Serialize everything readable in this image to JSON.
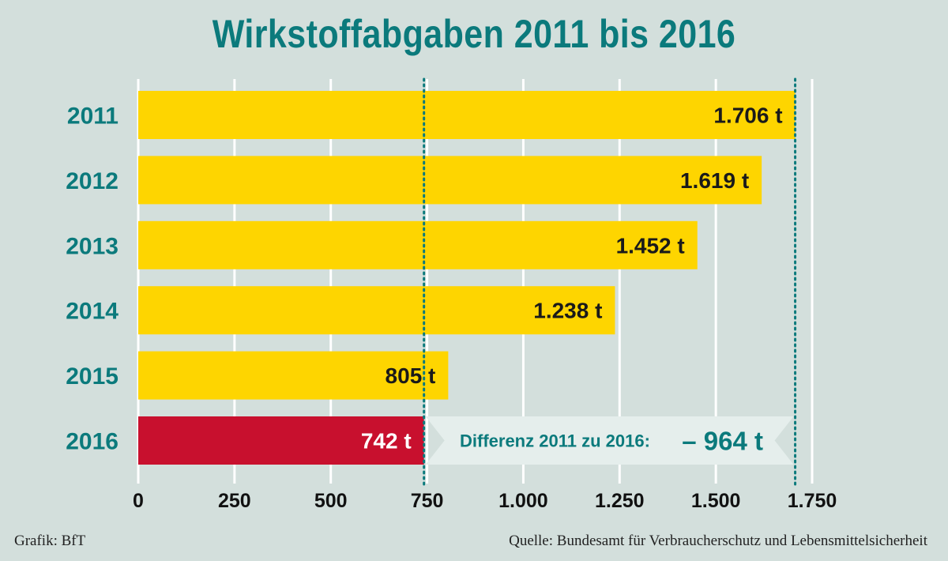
{
  "chart_data": {
    "type": "bar",
    "orientation": "horizontal",
    "title": "Wirkstoffabgaben 2011 bis 2016",
    "categories": [
      "2011",
      "2012",
      "2013",
      "2014",
      "2015",
      "2016"
    ],
    "values": [
      1706,
      1619,
      1452,
      1238,
      805,
      742
    ],
    "value_labels": [
      "1.706 t",
      "1.619 t",
      "1.452 t",
      "1.238 t",
      "805 t",
      "742 t"
    ],
    "unit": "t",
    "xlim": [
      0,
      1750
    ],
    "xticks": [
      0,
      250,
      500,
      750,
      1000,
      1250,
      1500,
      1750
    ],
    "xtick_labels": [
      "0",
      "250",
      "500",
      "750",
      "1.000",
      "1.250",
      "1.500",
      "1.750"
    ],
    "grid": true,
    "highlight_index": 5,
    "reference_lines": [
      742,
      1706
    ],
    "annotation": {
      "text": "Differenz 2011 zu 2016:",
      "value": "– 964 t"
    },
    "colors": {
      "bar": "#fed500",
      "highlight": "#c8102e",
      "accent": "#0b7a7c",
      "background": "#d3dfdc",
      "annotation_bg": "#e5eeec"
    }
  },
  "footer": {
    "credit": "Grafik: BfT",
    "source": "Quelle: Bundesamt für Verbraucherschutz und Lebensmittelsicherheit"
  }
}
